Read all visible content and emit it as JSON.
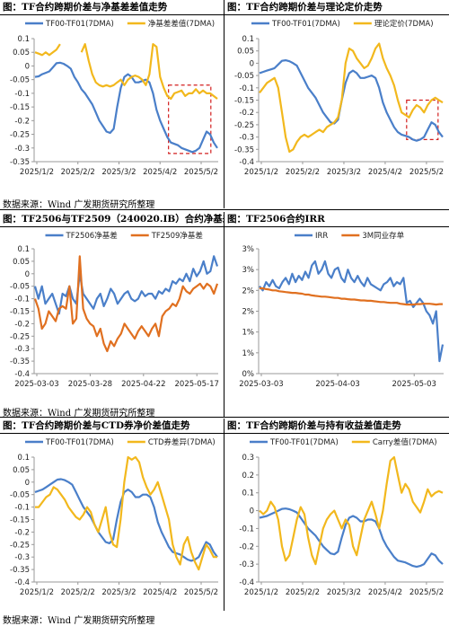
{
  "colors": {
    "blue": "#4a7fc9",
    "orange": "#f2b81d",
    "red_orange": "#e07020",
    "box": "#d21f1f",
    "axis": "#999999"
  },
  "source_text": "数据来源：Wind 广发期货研究所整理",
  "panels": [
    {
      "title": "图：TF合约跨期价差与净基差差值走势",
      "chart_data": {
        "type": "line",
        "ylim": [
          -0.35,
          0.1
        ],
        "y_ticks": [
          0.1,
          0.05,
          0,
          -0.05,
          -0.1,
          -0.15,
          -0.2,
          -0.25,
          -0.3,
          -0.35
        ],
        "x_tick_labels": [
          "2025/1/2",
          "2025/2/2",
          "2025/3/2",
          "2025/4/2",
          "2025/5/2"
        ],
        "legend_placement": "top",
        "highlight_box": {
          "x_range": [
            0.73,
            0.96
          ],
          "y_range": [
            -0.32,
            -0.07
          ]
        },
        "series": [
          {
            "name": "TF00-TF01(7DMA)",
            "color": "blue",
            "values": [
              -0.04,
              -0.038,
              -0.03,
              -0.025,
              -0.02,
              -0.005,
              0.01,
              0.012,
              0.008,
              0.0,
              -0.01,
              -0.04,
              -0.06,
              -0.085,
              -0.1,
              -0.12,
              -0.14,
              -0.17,
              -0.2,
              -0.22,
              -0.24,
              -0.245,
              -0.23,
              -0.15,
              -0.08,
              -0.04,
              -0.03,
              -0.04,
              -0.06,
              -0.06,
              -0.055,
              -0.05,
              -0.06,
              -0.1,
              -0.16,
              -0.2,
              -0.23,
              -0.26,
              -0.28,
              -0.285,
              -0.29,
              -0.3,
              -0.305,
              -0.31,
              -0.315,
              -0.31,
              -0.3,
              -0.27,
              -0.24,
              -0.25,
              -0.28,
              -0.3
            ]
          },
          {
            "name": "净基差差值(7DMA)",
            "color": "orange",
            "values": [
              0.05,
              0.045,
              0.04,
              0.05,
              0.04,
              0.05,
              0.06,
              0.08,
              null,
              null,
              null,
              null,
              null,
              0.05,
              0.08,
              0.02,
              -0.03,
              -0.06,
              -0.07,
              -0.075,
              -0.07,
              -0.075,
              -0.07,
              -0.06,
              -0.05,
              -0.07,
              -0.05,
              -0.04,
              -0.035,
              -0.04,
              -0.05,
              -0.07,
              -0.03,
              0.08,
              0.07,
              -0.04,
              -0.08,
              -0.11,
              -0.12,
              -0.1,
              -0.095,
              -0.09,
              -0.11,
              -0.1,
              -0.1,
              -0.085,
              -0.1,
              -0.09,
              -0.1,
              -0.1,
              -0.11,
              -0.12
            ]
          }
        ]
      }
    },
    {
      "title": "图：TF合约跨期价差与理论定价走势",
      "chart_data": {
        "type": "line",
        "ylim": [
          -0.4,
          0.1
        ],
        "y_ticks": [
          0.1,
          0.05,
          0,
          -0.05,
          -0.1,
          -0.15,
          -0.2,
          -0.25,
          -0.3,
          -0.35,
          -0.4
        ],
        "x_tick_labels": [
          "2025/1/2",
          "2025/2/2",
          "2025/3/2",
          "2025/4/2",
          "2025/5/2"
        ],
        "legend_placement": "top",
        "highlight_box": {
          "x_range": [
            0.8,
            0.97
          ],
          "y_range": [
            -0.31,
            -0.15
          ]
        },
        "series": [
          {
            "name": "TF00-TF01(7DMA)",
            "color": "blue",
            "values": [
              -0.04,
              -0.035,
              -0.03,
              -0.025,
              -0.02,
              -0.005,
              0.01,
              0.012,
              0.008,
              0.0,
              -0.01,
              -0.04,
              -0.07,
              -0.1,
              -0.12,
              -0.14,
              -0.17,
              -0.2,
              -0.22,
              -0.24,
              -0.245,
              -0.23,
              -0.15,
              -0.08,
              -0.04,
              -0.03,
              -0.04,
              -0.06,
              -0.06,
              -0.055,
              -0.05,
              -0.06,
              -0.1,
              -0.16,
              -0.2,
              -0.23,
              -0.26,
              -0.28,
              -0.29,
              -0.295,
              -0.3,
              -0.31,
              -0.315,
              -0.31,
              -0.3,
              -0.27,
              -0.24,
              -0.25,
              -0.28,
              -0.3
            ]
          },
          {
            "name": "理论定价(7DMA)",
            "color": "orange",
            "values": [
              -0.12,
              -0.1,
              -0.08,
              -0.07,
              -0.06,
              -0.1,
              -0.2,
              -0.3,
              -0.36,
              -0.35,
              -0.32,
              -0.3,
              -0.29,
              -0.3,
              -0.29,
              -0.28,
              -0.27,
              -0.28,
              -0.26,
              -0.25,
              -0.24,
              -0.22,
              -0.15,
              0.0,
              0.06,
              0.05,
              0.02,
              0.0,
              -0.02,
              -0.01,
              0.02,
              0.06,
              0.08,
              0.02,
              -0.02,
              -0.05,
              -0.09,
              -0.15,
              -0.2,
              -0.21,
              -0.22,
              -0.19,
              -0.17,
              -0.18,
              -0.2,
              -0.17,
              -0.15,
              -0.14,
              -0.15,
              -0.16
            ]
          }
        ]
      }
    },
    {
      "title": "图：TF2506与TF2509（240020.IB）合约净基差",
      "chart_data": {
        "type": "line",
        "ylim": [
          -0.4,
          0.1
        ],
        "y_ticks": [
          0.1,
          0.05,
          0,
          -0.05,
          -0.1,
          -0.15,
          -0.2,
          -0.25,
          -0.3,
          -0.35,
          -0.4
        ],
        "x_tick_labels": [
          "2025-03-03",
          "2025-03-28",
          "2025-04-22",
          "2025-05-17"
        ],
        "legend_placement": "top",
        "series": [
          {
            "name": "TF2506净基差",
            "color": "blue",
            "values": [
              -0.05,
              -0.1,
              -0.05,
              -0.12,
              -0.1,
              -0.08,
              -0.12,
              -0.16,
              -0.08,
              -0.09,
              -0.05,
              -0.1,
              -0.12,
              0.0,
              -0.08,
              -0.1,
              -0.12,
              -0.14,
              -0.1,
              -0.08,
              -0.13,
              -0.1,
              -0.06,
              -0.08,
              -0.12,
              -0.1,
              -0.08,
              -0.07,
              -0.1,
              -0.11,
              -0.1,
              -0.07,
              -0.09,
              -0.08,
              -0.08,
              -0.1,
              -0.07,
              -0.08,
              -0.06,
              -0.07,
              -0.03,
              -0.04,
              -0.02,
              -0.03,
              0.0,
              -0.03,
              0.02,
              -0.01,
              0.01,
              0.05,
              0.0,
              0.01,
              0.07,
              0.03
            ]
          },
          {
            "name": "TF2509净基差",
            "color": "red_orange",
            "values": [
              -0.1,
              -0.14,
              -0.22,
              -0.2,
              -0.15,
              -0.17,
              -0.19,
              -0.14,
              -0.13,
              -0.14,
              -0.05,
              -0.2,
              -0.18,
              0.07,
              -0.14,
              -0.18,
              -0.2,
              -0.21,
              -0.25,
              -0.22,
              -0.28,
              -0.31,
              -0.27,
              -0.29,
              -0.26,
              -0.24,
              -0.2,
              -0.22,
              -0.24,
              -0.26,
              -0.23,
              -0.21,
              -0.23,
              -0.25,
              -0.22,
              -0.2,
              -0.25,
              -0.17,
              -0.15,
              -0.14,
              -0.12,
              -0.13,
              -0.1,
              -0.05,
              -0.07,
              -0.08,
              -0.06,
              -0.05,
              -0.04,
              -0.06,
              -0.04,
              -0.05,
              -0.08,
              -0.04
            ]
          }
        ]
      }
    },
    {
      "title": "图：TF2506合约IRR",
      "chart_data": {
        "type": "line",
        "ylim": [
          0,
          3
        ],
        "y_ticks": [
          3,
          2.5,
          2,
          1.5,
          1,
          0.5,
          0
        ],
        "y_tick_labels": [
          "3%",
          "3%",
          "2%",
          "2%",
          "1%",
          "1%",
          "0%"
        ],
        "x_tick_labels": [
          "2025-03-03",
          "2025-04-03",
          "2025-05-03"
        ],
        "legend_placement": "top",
        "series": [
          {
            "name": "IRR",
            "color": "blue",
            "values": [
              2.1,
              2.0,
              2.2,
              2.1,
              2.25,
              2.1,
              2.05,
              2.2,
              2.3,
              2.15,
              2.4,
              2.2,
              2.35,
              2.25,
              2.45,
              2.3,
              2.6,
              2.7,
              2.4,
              2.5,
              2.7,
              2.4,
              2.3,
              2.5,
              2.55,
              2.3,
              2.2,
              2.5,
              2.3,
              2.2,
              2.35,
              2.2,
              2.1,
              2.3,
              2.15,
              2.1,
              2.05,
              2.0,
              2.15,
              2.2,
              2.3,
              2.1,
              2.2,
              2.15,
              2.3,
              1.7,
              1.75,
              1.6,
              1.7,
              1.8,
              1.7,
              1.5,
              1.4,
              1.2,
              1.5,
              0.3,
              0.7
            ]
          },
          {
            "name": "3M同业存单",
            "color": "red_orange",
            "values": [
              2.05,
              2.05,
              2.03,
              2.02,
              2.0,
              2.0,
              1.98,
              1.97,
              1.96,
              1.95,
              1.94,
              1.94,
              1.93,
              1.92,
              1.9,
              1.9,
              1.88,
              1.87,
              1.86,
              1.85,
              1.85,
              1.84,
              1.83,
              1.82,
              1.82,
              1.8,
              1.8,
              1.79,
              1.78,
              1.78,
              1.77,
              1.76,
              1.76,
              1.75,
              1.75,
              1.74,
              1.73,
              1.72,
              1.72,
              1.71,
              1.7,
              1.7,
              1.7,
              1.68,
              1.67,
              1.66,
              1.66,
              1.66,
              1.67,
              1.67,
              1.68,
              1.68,
              1.68,
              1.67,
              1.66,
              1.67,
              1.67
            ]
          }
        ]
      }
    },
    {
      "title": "图：TF合约跨期价差与CTD券净价差值走势",
      "chart_data": {
        "type": "line",
        "ylim": [
          -0.4,
          0.1
        ],
        "y_ticks": [
          0.1,
          0.05,
          0,
          -0.05,
          -0.1,
          -0.15,
          -0.2,
          -0.25,
          -0.3,
          -0.35,
          -0.4
        ],
        "x_tick_labels": [
          "2025/1/2",
          "2025/2/2",
          "2025/3/2",
          "2025/4/2",
          "2025/5/2"
        ],
        "legend_placement": "top",
        "series": [
          {
            "name": "TF00-TF01(7DMA)",
            "color": "blue",
            "values": [
              -0.04,
              -0.035,
              -0.03,
              -0.02,
              -0.01,
              0.0,
              0.01,
              0.012,
              0.008,
              0.0,
              -0.01,
              -0.04,
              -0.07,
              -0.1,
              -0.12,
              -0.14,
              -0.17,
              -0.2,
              -0.22,
              -0.24,
              -0.245,
              -0.23,
              -0.15,
              -0.08,
              -0.04,
              -0.03,
              -0.04,
              -0.06,
              -0.06,
              -0.05,
              -0.05,
              -0.06,
              -0.1,
              -0.16,
              -0.2,
              -0.23,
              -0.26,
              -0.28,
              -0.285,
              -0.29,
              -0.3,
              -0.31,
              -0.315,
              -0.31,
              -0.3,
              -0.27,
              -0.24,
              -0.25,
              -0.28,
              -0.3
            ]
          },
          {
            "name": "CTD券差异(7DMA)",
            "color": "orange",
            "values": [
              -0.1,
              -0.1,
              -0.08,
              -0.06,
              -0.05,
              -0.02,
              -0.03,
              -0.05,
              -0.07,
              -0.1,
              -0.12,
              -0.14,
              -0.15,
              -0.13,
              -0.1,
              -0.12,
              -0.17,
              -0.2,
              -0.15,
              -0.1,
              -0.2,
              -0.25,
              -0.26,
              -0.15,
              0.0,
              0.1,
              0.09,
              0.1,
              0.08,
              0.02,
              -0.02,
              -0.05,
              -0.03,
              0.0,
              -0.05,
              -0.1,
              -0.15,
              -0.25,
              -0.3,
              -0.33,
              -0.25,
              -0.22,
              -0.28,
              -0.32,
              -0.35,
              -0.3,
              -0.25,
              -0.27,
              -0.3,
              -0.3
            ]
          }
        ]
      }
    },
    {
      "title": "图：TF合约跨期价差与持有收益差值走势",
      "chart_data": {
        "type": "line",
        "ylim": [
          -0.4,
          0.3
        ],
        "y_ticks": [
          0.3,
          0.2,
          0.1,
          0,
          -0.1,
          -0.2,
          -0.3,
          -0.4
        ],
        "x_tick_labels": [
          "2025/1/2",
          "2025/2/2",
          "2025/3/2",
          "2025/4/2",
          "2025/5/2"
        ],
        "legend_placement": "top",
        "series": [
          {
            "name": "TF00-TF01(7DMA)",
            "color": "blue",
            "values": [
              -0.04,
              -0.035,
              -0.03,
              -0.02,
              -0.01,
              0.0,
              0.01,
              0.012,
              0.008,
              0.0,
              -0.01,
              -0.04,
              -0.07,
              -0.1,
              -0.12,
              -0.14,
              -0.17,
              -0.2,
              -0.22,
              -0.24,
              -0.245,
              -0.23,
              -0.15,
              -0.08,
              -0.04,
              -0.03,
              -0.04,
              -0.06,
              -0.06,
              -0.05,
              -0.05,
              -0.06,
              -0.1,
              -0.16,
              -0.2,
              -0.23,
              -0.26,
              -0.28,
              -0.285,
              -0.29,
              -0.3,
              -0.31,
              -0.315,
              -0.31,
              -0.3,
              -0.27,
              -0.24,
              -0.25,
              -0.28,
              -0.3
            ]
          },
          {
            "name": "Carry差值(7DMA)",
            "color": "orange",
            "values": [
              0.0,
              -0.02,
              0.0,
              0.05,
              0.02,
              -0.05,
              -0.2,
              -0.28,
              -0.25,
              -0.15,
              -0.05,
              0.02,
              -0.02,
              -0.15,
              -0.25,
              -0.3,
              -0.2,
              -0.1,
              -0.05,
              -0.02,
              0.0,
              -0.05,
              -0.1,
              -0.05,
              -0.08,
              -0.2,
              -0.25,
              -0.15,
              -0.05,
              0.0,
              0.05,
              -0.02,
              -0.1,
              0.0,
              0.15,
              0.28,
              0.3,
              0.2,
              0.1,
              0.15,
              0.12,
              0.05,
              0.02,
              -0.01,
              0.05,
              0.12,
              0.08,
              0.1,
              0.11,
              0.1
            ]
          }
        ]
      }
    }
  ]
}
